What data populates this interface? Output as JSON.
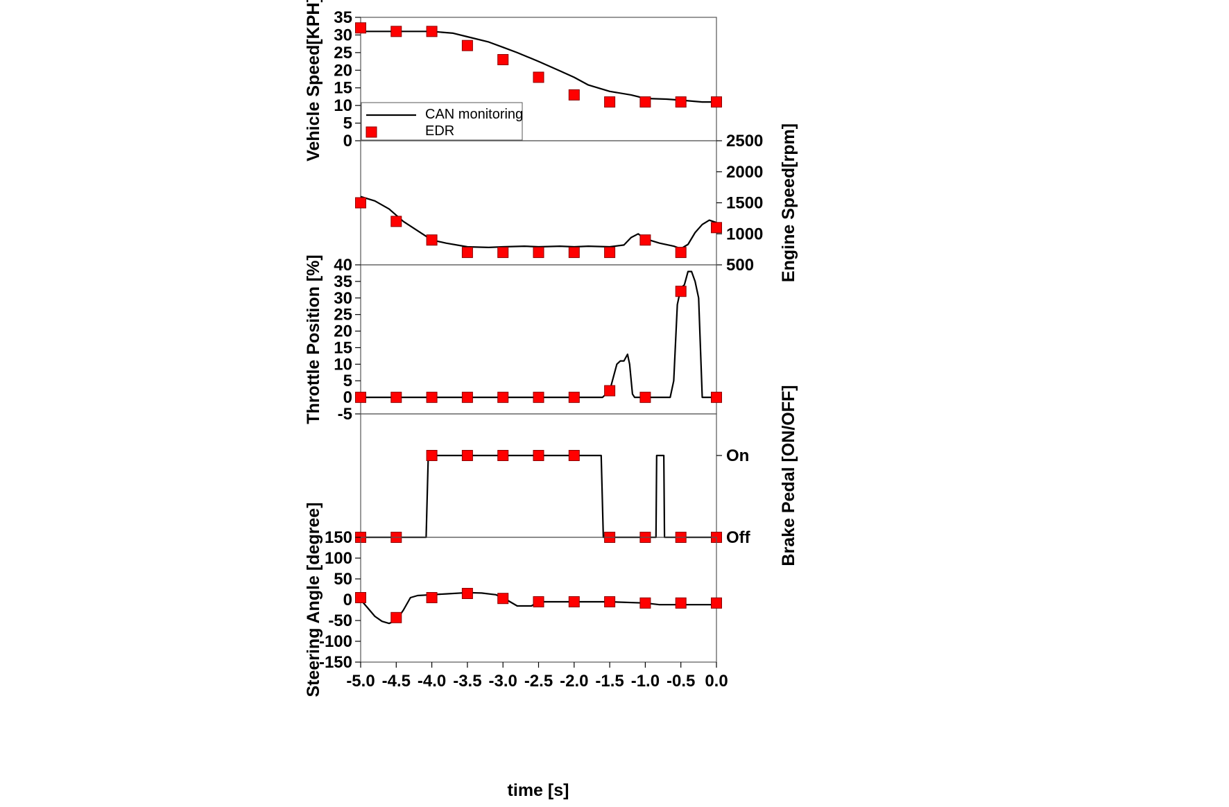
{
  "chart_data": {
    "type": "line",
    "xlabel": "time [s]",
    "xlim": [
      -5.0,
      0.0
    ],
    "x_ticks": [
      "-5.0",
      "-4.5",
      "-4.0",
      "-3.5",
      "-3.0",
      "-2.5",
      "-2.0",
      "-1.5",
      "-1.0",
      "-0.5",
      "0.0"
    ],
    "legend": {
      "placement": "bottom-left of top panel",
      "entries": [
        {
          "label": "CAN monitoring",
          "marker": "line",
          "color": "#000000"
        },
        {
          "label": "EDR",
          "marker": "square",
          "color": "#ff0000"
        }
      ]
    },
    "panels": [
      {
        "id": "vehicle-speed",
        "ylabel": "Vehicle Speed[KPH]",
        "axis_side": "left",
        "ylim": [
          0,
          35
        ],
        "y_ticks": [
          "0",
          "5",
          "10",
          "15",
          "20",
          "25",
          "30",
          "35"
        ],
        "series": [
          {
            "name": "CAN monitoring",
            "kind": "line",
            "x": [
              -5.0,
              -4.5,
              -4.0,
              -3.7,
              -3.5,
              -3.2,
              -3.0,
              -2.8,
              -2.5,
              -2.2,
              -2.0,
              -1.8,
              -1.5,
              -1.2,
              -1.0,
              -0.7,
              -0.5,
              -0.2,
              0.0
            ],
            "y": [
              31,
              31,
              31,
              30.5,
              29.5,
              28,
              26.5,
              25,
              22.5,
              19.8,
              18,
              15.8,
              14,
              13,
              12,
              11.8,
              11.5,
              11,
              11
            ]
          },
          {
            "name": "EDR",
            "kind": "scatter",
            "x": [
              -5.0,
              -4.5,
              -4.0,
              -3.5,
              -3.0,
              -2.5,
              -2.0,
              -1.5,
              -1.0,
              -0.5,
              0.0
            ],
            "y": [
              32,
              31,
              31,
              27,
              23,
              18,
              13,
              11,
              11,
              11,
              11
            ]
          }
        ]
      },
      {
        "id": "engine-speed",
        "ylabel": "Engine Speed[rpm]",
        "axis_side": "right",
        "ylim": [
          500,
          2500
        ],
        "y_ticks": [
          "500",
          "1000",
          "1500",
          "2000",
          "2500"
        ],
        "series": [
          {
            "name": "CAN monitoring",
            "kind": "line",
            "x": [
              -5.0,
              -4.8,
              -4.6,
              -4.4,
              -4.2,
              -4.0,
              -3.8,
              -3.5,
              -3.2,
              -3.0,
              -2.7,
              -2.5,
              -2.2,
              -2.0,
              -1.8,
              -1.5,
              -1.3,
              -1.2,
              -1.1,
              -1.0,
              -0.8,
              -0.6,
              -0.5,
              -0.4,
              -0.3,
              -0.2,
              -0.1,
              0.0
            ],
            "y": [
              1600,
              1530,
              1400,
              1200,
              1050,
              900,
              850,
              790,
              780,
              790,
              800,
              790,
              800,
              790,
              800,
              790,
              820,
              940,
              1000,
              920,
              850,
              800,
              760,
              830,
              1020,
              1150,
              1220,
              1180
            ]
          },
          {
            "name": "EDR",
            "kind": "scatter",
            "x": [
              -5.0,
              -4.5,
              -4.0,
              -3.5,
              -3.0,
              -2.5,
              -2.0,
              -1.5,
              -1.0,
              -0.5,
              0.0
            ],
            "y": [
              1500,
              1200,
              900,
              700,
              700,
              700,
              700,
              700,
              900,
              700,
              1100
            ]
          }
        ]
      },
      {
        "id": "throttle-position",
        "ylabel": "Throttle Position [%]",
        "axis_side": "left",
        "ylim": [
          -5,
          40
        ],
        "y_ticks": [
          "-5",
          "0",
          "5",
          "10",
          "15",
          "20",
          "25",
          "30",
          "35",
          "40"
        ],
        "series": [
          {
            "name": "CAN monitoring",
            "kind": "line",
            "x": [
              -5.0,
              -1.6,
              -1.5,
              -1.4,
              -1.35,
              -1.3,
              -1.25,
              -1.22,
              -1.18,
              -1.15,
              -0.65,
              -0.6,
              -0.55,
              -0.5,
              -0.45,
              -0.4,
              -0.35,
              -0.3,
              -0.25,
              -0.2,
              -0.15,
              0.0
            ],
            "y": [
              0,
              0,
              2,
              10,
              11,
              11,
              13,
              10,
              1,
              0,
              0,
              5,
              28,
              33,
              34,
              38,
              38,
              35,
              30,
              0,
              0,
              0
            ]
          },
          {
            "name": "EDR",
            "kind": "scatter",
            "x": [
              -5.0,
              -4.5,
              -4.0,
              -3.5,
              -3.0,
              -2.5,
              -2.0,
              -1.5,
              -1.0,
              -0.5,
              0.0
            ],
            "y": [
              0,
              0,
              0,
              0,
              0,
              0,
              0,
              2,
              0,
              32,
              0
            ]
          }
        ]
      },
      {
        "id": "brake-pedal",
        "ylabel": "Brake Pedal [ON/OFF]",
        "axis_side": "right",
        "ylim": [
          0,
          1.2
        ],
        "y_ticks": [
          "Off",
          "On"
        ],
        "y_tick_values": [
          0,
          1
        ],
        "series": [
          {
            "name": "CAN monitoring",
            "kind": "line",
            "x": [
              -5.0,
              -4.08,
              -4.05,
              -1.62,
              -1.59,
              -0.85,
              -0.84,
              -0.74,
              -0.73,
              0.0
            ],
            "y": [
              0,
              0,
              1,
              1,
              0,
              0,
              1,
              1,
              0,
              0
            ]
          },
          {
            "name": "EDR",
            "kind": "scatter",
            "x": [
              -5.0,
              -4.5,
              -4.0,
              -3.5,
              -3.0,
              -2.5,
              -2.0,
              -1.5,
              -1.0,
              -0.5,
              0.0
            ],
            "y": [
              0,
              0,
              1,
              1,
              1,
              1,
              1,
              0,
              0,
              0,
              0
            ]
          }
        ]
      },
      {
        "id": "steering-angle",
        "ylabel": "Steering Angle [degree]",
        "axis_side": "left",
        "ylim": [
          -150,
          150
        ],
        "y_ticks": [
          "-150",
          "-100",
          "-50",
          "0",
          "50",
          "100",
          "150"
        ],
        "series": [
          {
            "name": "CAN monitoring",
            "kind": "line",
            "x": [
              -5.0,
              -4.9,
              -4.8,
              -4.7,
              -4.6,
              -4.5,
              -4.4,
              -4.3,
              -4.2,
              -4.0,
              -3.8,
              -3.5,
              -3.3,
              -3.1,
              -3.0,
              -2.8,
              -2.6,
              -2.5,
              -2.0,
              -1.5,
              -1.0,
              -0.8,
              -0.5,
              0.0
            ],
            "y": [
              0,
              -20,
              -40,
              -52,
              -57,
              -50,
              -25,
              5,
              10,
              12,
              14,
              17,
              16,
              12,
              5,
              -15,
              -15,
              -5,
              -5,
              -5,
              -8,
              -12,
              -12,
              -12
            ]
          },
          {
            "name": "EDR",
            "kind": "scatter",
            "x": [
              -5.0,
              -4.5,
              -4.0,
              -3.5,
              -3.0,
              -2.5,
              -2.0,
              -1.5,
              -1.0,
              -0.5,
              0.0
            ],
            "y": [
              5,
              -43,
              5,
              15,
              3,
              -5,
              -5,
              -5,
              -8,
              -8,
              -8
            ]
          }
        ]
      }
    ]
  }
}
